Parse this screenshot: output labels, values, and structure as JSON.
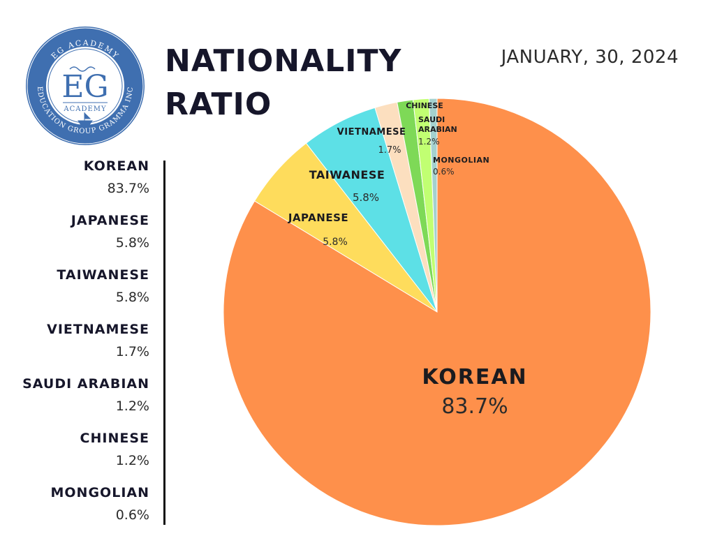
{
  "header": {
    "title_line1": "NATIONALITY",
    "title_line2": "RATIO",
    "date": "JANUARY, 30, 2024"
  },
  "logo": {
    "monogram": "EG",
    "ring_top_text": "EG ACADEMY",
    "academy_text": "ACADEMY",
    "ring_bottom_text": "EDUCATION GROUP GRAMMA INC",
    "colors": {
      "ring": "#3f6fb0",
      "text": "#ffffff",
      "monogram": "#3f6fb0"
    }
  },
  "legend": [
    {
      "name": "KOREAN",
      "pct": "83.7%"
    },
    {
      "name": "JAPANESE",
      "pct": "5.8%"
    },
    {
      "name": "TAIWANESE",
      "pct": "5.8%"
    },
    {
      "name": "VIETNAMESE",
      "pct": "1.7%"
    },
    {
      "name": "SAUDI ARABIAN",
      "pct": "1.2%"
    },
    {
      "name": "CHINESE",
      "pct": "1.2%"
    },
    {
      "name": "MONGOLIAN",
      "pct": "0.6%"
    }
  ],
  "chart_data": {
    "type": "pie",
    "title": "NATIONALITY RATIO",
    "categories": [
      "KOREAN",
      "JAPANESE",
      "TAIWANESE",
      "VIETNAMESE",
      "SAUDI ARABIAN",
      "CHINESE",
      "MONGOLIAN"
    ],
    "values": [
      83.7,
      5.8,
      5.8,
      1.7,
      1.2,
      1.2,
      0.6
    ],
    "labels": [
      "83.7%",
      "5.8%",
      "5.8%",
      "1.7%",
      "1.2%",
      "1.2%",
      "0.6%"
    ],
    "colors": [
      "#fe904b",
      "#fedc5c",
      "#5de0e6",
      "#fcdfbf",
      "#7ed957",
      "#c1ff72",
      "#a4d1cf"
    ],
    "start": "12 o'clock, clockwise",
    "legend": "left"
  }
}
